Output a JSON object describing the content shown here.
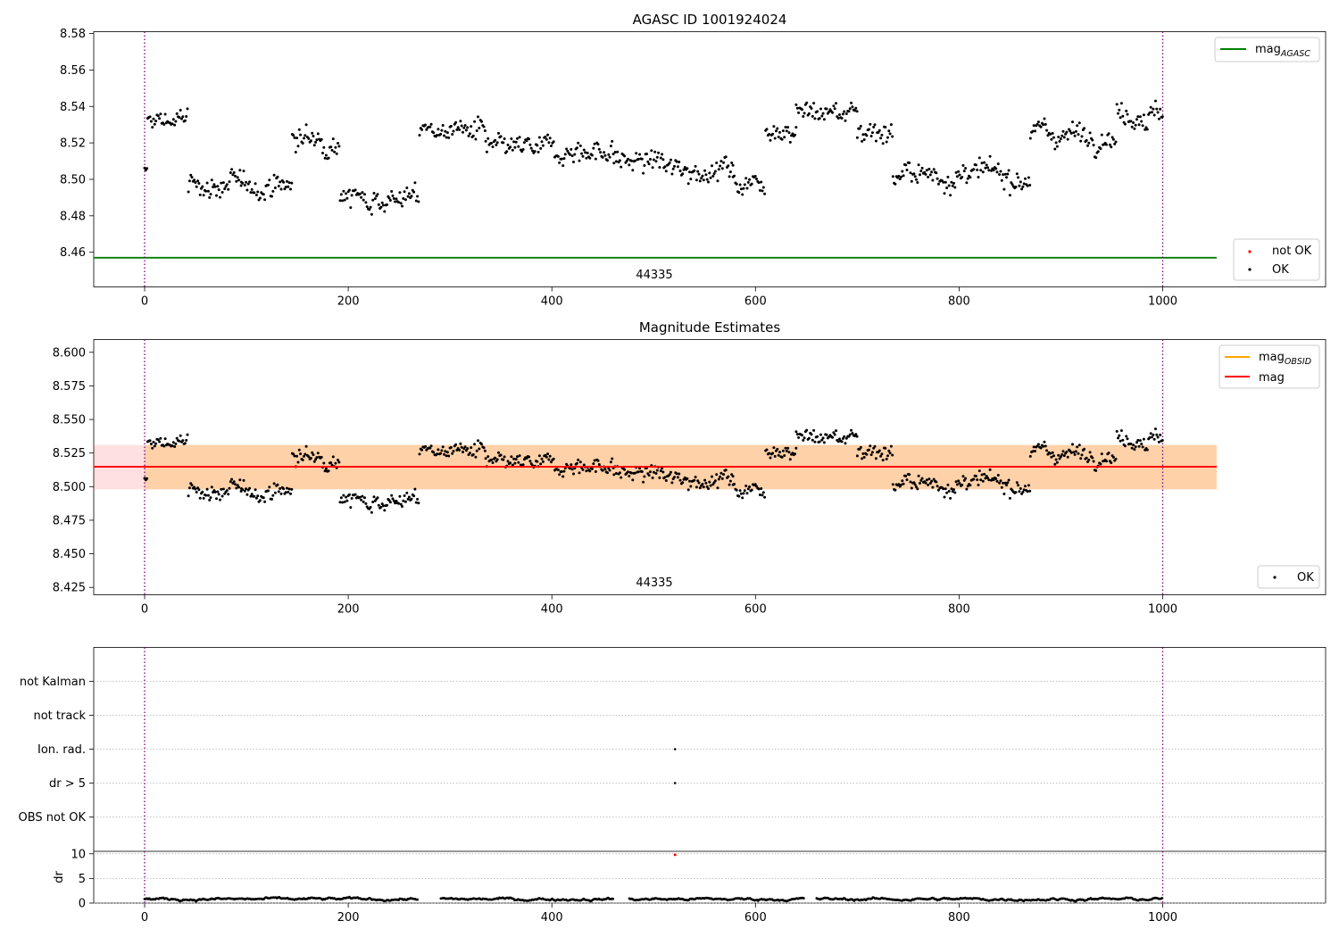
{
  "chart_data": [
    {
      "type": "scatter",
      "title": "AGASC ID 1001924024",
      "obsid_label": "44335",
      "x_range": [
        -50,
        1160
      ],
      "y_range": [
        8.441,
        8.581
      ],
      "x_ticks": [
        0,
        200,
        400,
        600,
        800,
        1000
      ],
      "x_tick_labels": [
        "0",
        "200",
        "400",
        "600",
        "800",
        "1000"
      ],
      "y_ticks": [
        8.46,
        8.48,
        8.5,
        8.52,
        8.54,
        8.56,
        8.58
      ],
      "y_tick_labels": [
        "8.46",
        "8.48",
        "8.50",
        "8.52",
        "8.54",
        "8.56",
        "8.58"
      ],
      "vlines": [
        0,
        1000
      ],
      "hline": {
        "name": "mag",
        "subscript": "AGASC",
        "value": 8.457,
        "x_range": [
          -50,
          1053
        ],
        "color": "#008000"
      },
      "legend_lines": [
        {
          "name": "mag",
          "subscript": "AGASC",
          "color": "#008000"
        }
      ],
      "legend_points": [
        {
          "name": "not OK",
          "color": "#ff0000"
        },
        {
          "name": "OK",
          "color": "#000000"
        }
      ],
      "legend_lines_placement": "top-right",
      "legend_points_placement": "bottom-right"
    },
    {
      "type": "scatter",
      "title": "Magnitude Estimates",
      "obsid_label": "44335",
      "x_range": [
        -50,
        1160
      ],
      "y_range": [
        8.4195,
        8.6095
      ],
      "x_ticks": [
        0,
        200,
        400,
        600,
        800,
        1000
      ],
      "x_tick_labels": [
        "0",
        "200",
        "400",
        "600",
        "800",
        "1000"
      ],
      "y_ticks": [
        8.425,
        8.45,
        8.475,
        8.5,
        8.525,
        8.55,
        8.575,
        8.6
      ],
      "y_tick_labels": [
        "8.425",
        "8.450",
        "8.475",
        "8.500",
        "8.525",
        "8.550",
        "8.575",
        "8.600"
      ],
      "vlines": [
        0,
        1000
      ],
      "band_obsid": {
        "low": 8.498,
        "high": 8.531,
        "x_range": [
          -50,
          1053
        ],
        "color": "#ffa500"
      },
      "band_mag": {
        "low": 8.498,
        "high": 8.531,
        "x_range": [
          -50,
          1053
        ],
        "color": "#ff0000"
      },
      "line_obsid": {
        "value": 8.5148,
        "color": "#ffa500"
      },
      "line_mag": {
        "value": 8.5148,
        "color": "#ff0000"
      },
      "legend_lines": [
        {
          "name": "mag",
          "subscript": "OBSID",
          "color": "#ffa500"
        },
        {
          "name": "mag",
          "subscript": "",
          "color": "#ff0000"
        }
      ],
      "legend_points": [
        {
          "name": "OK",
          "color": "#000000"
        }
      ],
      "legend_lines_placement": "top-right",
      "legend_points_placement": "bottom-right"
    },
    {
      "type": "scatter",
      "title": "",
      "x_range": [
        -50,
        1160
      ],
      "categories": [
        "not Kalman",
        "not track",
        "Ion. rad.",
        "dr > 5",
        "OBS not OK"
      ],
      "flag_points": [
        {
          "category": "Ion. rad.",
          "x": 521
        },
        {
          "category": "dr > 5",
          "x": 521
        }
      ],
      "vlines": [
        0,
        1000
      ]
    },
    {
      "type": "scatter",
      "title": "",
      "ylabel": "dr",
      "x_range": [
        -50,
        1160
      ],
      "y_range": [
        0,
        10.5
      ],
      "x_ticks": [
        0,
        200,
        400,
        600,
        800,
        1000
      ],
      "x_tick_labels": [
        "0",
        "200",
        "400",
        "600",
        "800",
        "1000"
      ],
      "y_ticks": [
        0,
        5,
        10
      ],
      "y_tick_labels": [
        "0",
        "5",
        "10"
      ],
      "dr_outlier": {
        "x": 521,
        "y": 9.8,
        "color": "#ff0000"
      },
      "dr_gaps": [
        [
          268,
          290
        ],
        [
          461,
          476
        ],
        [
          648,
          660
        ]
      ],
      "vlines": [
        0,
        1000
      ]
    }
  ],
  "mag_series": {
    "segments": [
      [
        0,
        3,
        8.503
      ],
      [
        3,
        43,
        8.533
      ],
      [
        43,
        95,
        8.497
      ],
      [
        95,
        145,
        8.497
      ],
      [
        145,
        192,
        8.522
      ],
      [
        192,
        270,
        8.49
      ],
      [
        270,
        335,
        8.527
      ],
      [
        335,
        461,
        8.516
      ],
      [
        461,
        510,
        8.51
      ],
      [
        510,
        578,
        8.506
      ],
      [
        578,
        610,
        8.499
      ],
      [
        610,
        640,
        8.528
      ],
      [
        640,
        700,
        8.537
      ],
      [
        700,
        735,
        8.527
      ],
      [
        735,
        870,
        8.502
      ],
      [
        870,
        955,
        8.525
      ],
      [
        955,
        1000,
        8.536
      ]
    ],
    "noise": 0.0085,
    "step": 1.15
  }
}
